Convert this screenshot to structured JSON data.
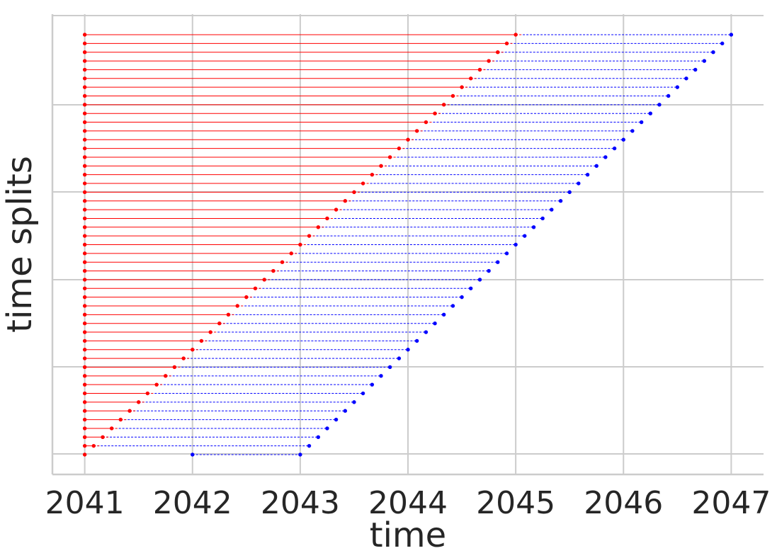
{
  "chart_data": {
    "type": "timeline",
    "title": "",
    "xlabel": "time",
    "ylabel": "time splits",
    "xlim": [
      2040.7,
      2047.3
    ],
    "x_ticks": [
      "2041",
      "2042",
      "2043",
      "2044",
      "2045",
      "2046",
      "2047"
    ],
    "y_gridlines": 6,
    "grid": true,
    "colors": {
      "train": "#ff0000",
      "test": "#0000ff",
      "grid": "#cccccc",
      "text": "#262626"
    },
    "split_count": 49,
    "series": [
      {
        "role": "train",
        "line_style": "solid",
        "start_x": 2041.0,
        "end_x_values": [
          2041.0,
          2041.083,
          2041.167,
          2041.25,
          2041.333,
          2041.417,
          2041.5,
          2041.583,
          2041.667,
          2041.75,
          2041.833,
          2041.917,
          2042.0,
          2042.083,
          2042.167,
          2042.25,
          2042.333,
          2042.417,
          2042.5,
          2042.583,
          2042.667,
          2042.75,
          2042.833,
          2042.917,
          2043.0,
          2043.083,
          2043.167,
          2043.25,
          2043.333,
          2043.417,
          2043.5,
          2043.583,
          2043.667,
          2043.75,
          2043.833,
          2043.917,
          2044.0,
          2044.083,
          2044.167,
          2044.25,
          2044.333,
          2044.417,
          2044.5,
          2044.583,
          2044.667,
          2044.75,
          2044.833,
          2044.917,
          2045.0
        ]
      },
      {
        "role": "test",
        "line_style": "dashed",
        "end_x_values": [
          2043.0,
          2043.083,
          2043.167,
          2043.25,
          2043.333,
          2043.417,
          2043.5,
          2043.583,
          2043.667,
          2043.75,
          2043.833,
          2043.917,
          2044.0,
          2044.083,
          2044.167,
          2044.25,
          2044.333,
          2044.417,
          2044.5,
          2044.583,
          2044.667,
          2044.75,
          2044.833,
          2044.917,
          2045.0,
          2045.083,
          2045.167,
          2045.25,
          2045.333,
          2045.417,
          2045.5,
          2045.583,
          2045.667,
          2045.75,
          2045.833,
          2045.917,
          2046.0,
          2046.083,
          2046.167,
          2046.25,
          2046.333,
          2046.417,
          2046.5,
          2046.583,
          2046.667,
          2046.75,
          2046.833,
          2046.917,
          2047.0
        ]
      }
    ],
    "notes": "Each split row: train segment from 2041 to train end (red), test segment from train end to test end (blue). Row 1 (bottom) has train end 2041 with an extra point at 2042."
  }
}
